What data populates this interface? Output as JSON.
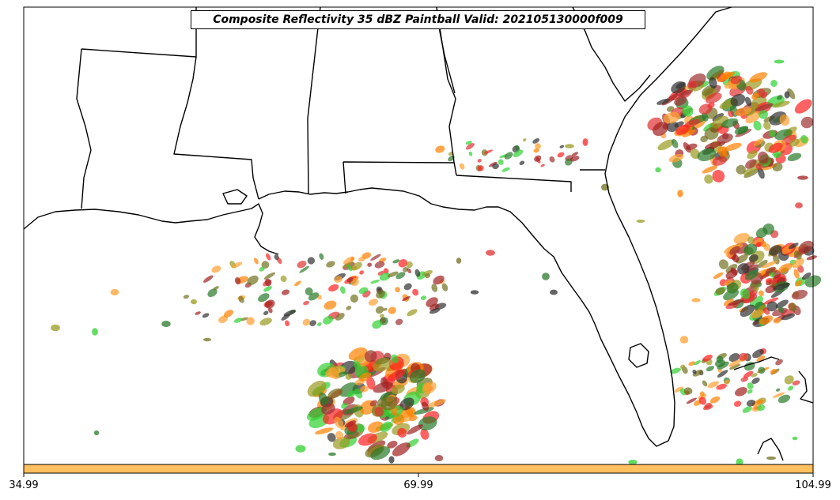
{
  "title": "Composite Reflectivity 35 dBZ Paintball Valid: 202105130000f009",
  "colorbar": {
    "ticks": [
      "34.99",
      "69.99",
      "104.99"
    ],
    "color": "#FFC060"
  },
  "map": {
    "region": "Southeastern United States and Gulf of Mexico",
    "boundary_color": "#000000",
    "background": "#ffffff"
  },
  "paintball_colors": [
    "#FF2020",
    "#E03030",
    "#FF8000",
    "#FFA030",
    "#A02020",
    "#9C3030",
    "#30D030",
    "#2A7A2A",
    "#9A9A20",
    "#707020",
    "#303030"
  ],
  "storm_clusters": [
    {
      "name": "central-gulf-cluster",
      "intensity": "high"
    },
    {
      "name": "western-gulf-scatter",
      "intensity": "medium"
    },
    {
      "name": "southeast-coast-cluster",
      "intensity": "high"
    },
    {
      "name": "atlantic-east-cluster",
      "intensity": "high"
    },
    {
      "name": "keys-bahamas-cluster",
      "intensity": "medium"
    },
    {
      "name": "georgia-panhandle-cells",
      "intensity": "low"
    }
  ]
}
